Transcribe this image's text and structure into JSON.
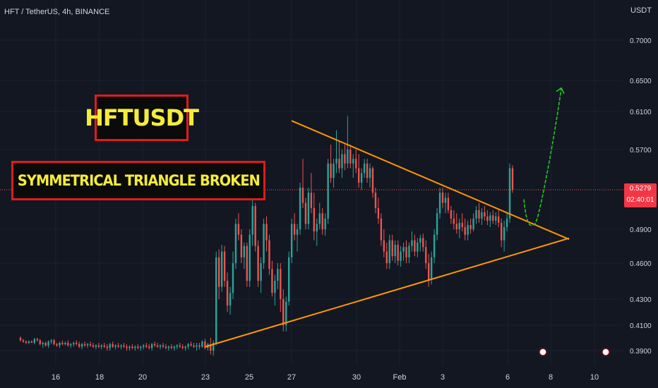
{
  "header": {
    "symbol": "HFT / TetherUS, 4h, BINANCE",
    "currency": "USDT"
  },
  "annotations": {
    "ticker": "HFTUSDT",
    "pattern": "SYMMETRICAL TRIANGLE BROKEN"
  },
  "price_tag": {
    "price": "0.5279",
    "countdown": "02:40:01"
  },
  "events": [
    {
      "icon": "us-flag-icon"
    },
    {
      "icon": "us-flag-icon"
    }
  ],
  "colors": {
    "background": "#131722",
    "up": "#26a69a",
    "down": "#ef5350",
    "trendline": "#ff9800",
    "projection": "#22c722",
    "box_border": "#e01b1b",
    "box_text": "#f4ec3a"
  },
  "chart_data": {
    "type": "candlestick",
    "title": "HFT / TetherUS, 4h, BINANCE",
    "y_axis": {
      "scale": "log",
      "unit": "USDT",
      "ticks": [
        "0.7000",
        "0.6500",
        "0.6100",
        "0.5700",
        "0.5279",
        "0.4900",
        "0.4600",
        "0.4300",
        "0.4100",
        "0.3900"
      ]
    },
    "x_axis": {
      "ticks": [
        "16",
        "18",
        "20",
        "23",
        "25",
        "27",
        "30",
        "Feb",
        "3",
        "6",
        "8",
        "10"
      ]
    },
    "last_price": 0.5279,
    "trendlines": [
      {
        "name": "upper",
        "from": {
          "date": "Jan 27",
          "price": 0.6
        },
        "to": {
          "date": "Feb 8",
          "price": 0.488
        }
      },
      {
        "name": "lower",
        "from": {
          "date": "Jan 23",
          "price": 0.393
        },
        "to": {
          "date": "Feb 8",
          "price": 0.477
        }
      }
    ],
    "projection": [
      {
        "date": "Feb 6",
        "price": 0.515
      },
      {
        "date": "Feb 7",
        "price": 0.498
      },
      {
        "date": "Feb 8",
        "price": 0.64
      }
    ],
    "candles": [
      [
        0.4,
        0.401,
        0.397,
        0.398
      ],
      [
        0.398,
        0.399,
        0.396,
        0.397
      ],
      [
        0.397,
        0.398,
        0.395,
        0.396
      ],
      [
        0.396,
        0.398,
        0.395,
        0.397
      ],
      [
        0.397,
        0.398,
        0.396,
        0.396
      ],
      [
        0.396,
        0.4,
        0.395,
        0.399
      ],
      [
        0.399,
        0.4,
        0.397,
        0.398
      ],
      [
        0.398,
        0.399,
        0.394,
        0.395
      ],
      [
        0.395,
        0.397,
        0.392,
        0.396
      ],
      [
        0.396,
        0.397,
        0.393,
        0.394
      ],
      [
        0.394,
        0.398,
        0.392,
        0.397
      ],
      [
        0.397,
        0.399,
        0.395,
        0.398
      ],
      [
        0.398,
        0.399,
        0.394,
        0.395
      ],
      [
        0.395,
        0.396,
        0.393,
        0.394
      ],
      [
        0.394,
        0.397,
        0.392,
        0.396
      ],
      [
        0.396,
        0.398,
        0.394,
        0.395
      ],
      [
        0.395,
        0.397,
        0.394,
        0.396
      ],
      [
        0.396,
        0.398,
        0.393,
        0.394
      ],
      [
        0.394,
        0.396,
        0.392,
        0.395
      ],
      [
        0.395,
        0.397,
        0.393,
        0.396
      ],
      [
        0.396,
        0.398,
        0.394,
        0.395
      ],
      [
        0.395,
        0.397,
        0.392,
        0.393
      ],
      [
        0.393,
        0.396,
        0.391,
        0.395
      ],
      [
        0.395,
        0.397,
        0.393,
        0.394
      ],
      [
        0.394,
        0.396,
        0.392,
        0.395
      ],
      [
        0.395,
        0.397,
        0.393,
        0.394
      ],
      [
        0.394,
        0.396,
        0.392,
        0.393
      ],
      [
        0.393,
        0.395,
        0.391,
        0.394
      ],
      [
        0.394,
        0.396,
        0.392,
        0.393
      ],
      [
        0.393,
        0.395,
        0.391,
        0.394
      ],
      [
        0.394,
        0.396,
        0.392,
        0.393
      ],
      [
        0.393,
        0.395,
        0.39,
        0.392
      ],
      [
        0.392,
        0.396,
        0.39,
        0.395
      ],
      [
        0.395,
        0.397,
        0.392,
        0.393
      ],
      [
        0.393,
        0.395,
        0.391,
        0.394
      ],
      [
        0.394,
        0.396,
        0.392,
        0.393
      ],
      [
        0.393,
        0.395,
        0.391,
        0.394
      ],
      [
        0.394,
        0.396,
        0.392,
        0.393
      ],
      [
        0.393,
        0.395,
        0.39,
        0.392
      ],
      [
        0.392,
        0.394,
        0.39,
        0.393
      ],
      [
        0.393,
        0.395,
        0.391,
        0.392
      ],
      [
        0.392,
        0.394,
        0.39,
        0.393
      ],
      [
        0.393,
        0.395,
        0.391,
        0.392
      ],
      [
        0.392,
        0.394,
        0.39,
        0.393
      ],
      [
        0.393,
        0.395,
        0.391,
        0.394
      ],
      [
        0.394,
        0.396,
        0.392,
        0.393
      ],
      [
        0.393,
        0.395,
        0.391,
        0.392
      ],
      [
        0.392,
        0.396,
        0.39,
        0.395
      ],
      [
        0.395,
        0.397,
        0.393,
        0.394
      ],
      [
        0.394,
        0.396,
        0.392,
        0.393
      ],
      [
        0.393,
        0.395,
        0.391,
        0.394
      ],
      [
        0.394,
        0.396,
        0.392,
        0.393
      ],
      [
        0.393,
        0.395,
        0.391,
        0.392
      ],
      [
        0.392,
        0.394,
        0.39,
        0.393
      ],
      [
        0.393,
        0.395,
        0.391,
        0.392
      ],
      [
        0.392,
        0.394,
        0.39,
        0.393
      ],
      [
        0.393,
        0.395,
        0.391,
        0.394
      ],
      [
        0.394,
        0.396,
        0.392,
        0.393
      ],
      [
        0.393,
        0.395,
        0.391,
        0.392
      ],
      [
        0.392,
        0.394,
        0.39,
        0.393
      ],
      [
        0.393,
        0.396,
        0.391,
        0.395
      ],
      [
        0.395,
        0.397,
        0.393,
        0.394
      ],
      [
        0.394,
        0.396,
        0.392,
        0.393
      ],
      [
        0.393,
        0.396,
        0.39,
        0.394
      ],
      [
        0.394,
        0.396,
        0.391,
        0.393
      ],
      [
        0.393,
        0.398,
        0.392,
        0.397
      ],
      [
        0.397,
        0.399,
        0.391,
        0.392
      ],
      [
        0.392,
        0.396,
        0.39,
        0.395
      ],
      [
        0.395,
        0.4,
        0.387,
        0.39
      ],
      [
        0.39,
        0.398,
        0.386,
        0.396
      ],
      [
        0.396,
        0.47,
        0.394,
        0.465
      ],
      [
        0.465,
        0.472,
        0.43,
        0.44
      ],
      [
        0.44,
        0.476,
        0.436,
        0.47
      ],
      [
        0.47,
        0.475,
        0.44,
        0.445
      ],
      [
        0.445,
        0.452,
        0.42,
        0.425
      ],
      [
        0.425,
        0.44,
        0.418,
        0.435
      ],
      [
        0.435,
        0.47,
        0.43,
        0.46
      ],
      [
        0.46,
        0.5,
        0.455,
        0.495
      ],
      [
        0.495,
        0.505,
        0.48,
        0.485
      ],
      [
        0.485,
        0.49,
        0.46,
        0.465
      ],
      [
        0.465,
        0.478,
        0.455,
        0.475
      ],
      [
        0.475,
        0.478,
        0.44,
        0.445
      ],
      [
        0.445,
        0.49,
        0.44,
        0.485
      ],
      [
        0.485,
        0.52,
        0.475,
        0.512
      ],
      [
        0.512,
        0.515,
        0.47,
        0.475
      ],
      [
        0.475,
        0.48,
        0.44,
        0.445
      ],
      [
        0.445,
        0.465,
        0.435,
        0.46
      ],
      [
        0.46,
        0.5,
        0.455,
        0.495
      ],
      [
        0.495,
        0.502,
        0.47,
        0.48
      ],
      [
        0.48,
        0.485,
        0.45,
        0.455
      ],
      [
        0.455,
        0.462,
        0.432,
        0.435
      ],
      [
        0.435,
        0.45,
        0.425,
        0.445
      ],
      [
        0.445,
        0.46,
        0.438,
        0.455
      ],
      [
        0.455,
        0.46,
        0.42,
        0.43
      ],
      [
        0.43,
        0.438,
        0.405,
        0.41
      ],
      [
        0.41,
        0.432,
        0.405,
        0.428
      ],
      [
        0.428,
        0.47,
        0.425,
        0.465
      ],
      [
        0.465,
        0.5,
        0.46,
        0.495
      ],
      [
        0.495,
        0.505,
        0.48,
        0.485
      ],
      [
        0.485,
        0.495,
        0.47,
        0.49
      ],
      [
        0.49,
        0.535,
        0.485,
        0.53
      ],
      [
        0.53,
        0.56,
        0.51,
        0.515
      ],
      [
        0.515,
        0.52,
        0.49,
        0.495
      ],
      [
        0.495,
        0.53,
        0.49,
        0.525
      ],
      [
        0.525,
        0.545,
        0.505,
        0.51
      ],
      [
        0.51,
        0.525,
        0.48,
        0.488
      ],
      [
        0.488,
        0.5,
        0.475,
        0.495
      ],
      [
        0.495,
        0.515,
        0.49,
        0.505
      ],
      [
        0.505,
        0.51,
        0.485,
        0.49
      ],
      [
        0.49,
        0.505,
        0.484,
        0.5
      ],
      [
        0.5,
        0.56,
        0.495,
        0.555
      ],
      [
        0.555,
        0.575,
        0.535,
        0.54
      ],
      [
        0.54,
        0.56,
        0.53,
        0.555
      ],
      [
        0.555,
        0.59,
        0.545,
        0.56
      ],
      [
        0.56,
        0.578,
        0.545,
        0.55
      ],
      [
        0.55,
        0.57,
        0.54,
        0.565
      ],
      [
        0.565,
        0.575,
        0.548,
        0.555
      ],
      [
        0.555,
        0.605,
        0.55,
        0.57
      ],
      [
        0.57,
        0.575,
        0.55,
        0.555
      ],
      [
        0.555,
        0.565,
        0.54,
        0.56
      ],
      [
        0.56,
        0.57,
        0.545,
        0.55
      ],
      [
        0.55,
        0.565,
        0.53,
        0.535
      ],
      [
        0.535,
        0.55,
        0.528,
        0.545
      ],
      [
        0.545,
        0.56,
        0.54,
        0.555
      ],
      [
        0.555,
        0.56,
        0.535,
        0.54
      ],
      [
        0.54,
        0.555,
        0.53,
        0.55
      ],
      [
        0.55,
        0.552,
        0.52,
        0.525
      ],
      [
        0.525,
        0.53,
        0.505,
        0.51
      ],
      [
        0.51,
        0.52,
        0.495,
        0.5
      ],
      [
        0.5,
        0.505,
        0.475,
        0.48
      ],
      [
        0.48,
        0.49,
        0.465,
        0.47
      ],
      [
        0.47,
        0.478,
        0.455,
        0.46
      ],
      [
        0.46,
        0.485,
        0.455,
        0.48
      ],
      [
        0.48,
        0.485,
        0.462,
        0.466
      ],
      [
        0.466,
        0.48,
        0.46,
        0.476
      ],
      [
        0.476,
        0.48,
        0.458,
        0.462
      ],
      [
        0.462,
        0.475,
        0.457,
        0.47
      ],
      [
        0.47,
        0.478,
        0.462,
        0.474
      ],
      [
        0.474,
        0.48,
        0.46,
        0.465
      ],
      [
        0.465,
        0.478,
        0.46,
        0.475
      ],
      [
        0.475,
        0.488,
        0.47,
        0.48
      ],
      [
        0.48,
        0.485,
        0.466,
        0.47
      ],
      [
        0.47,
        0.482,
        0.465,
        0.478
      ],
      [
        0.478,
        0.485,
        0.47,
        0.482
      ],
      [
        0.482,
        0.486,
        0.47,
        0.474
      ],
      [
        0.474,
        0.48,
        0.455,
        0.46
      ],
      [
        0.46,
        0.468,
        0.44,
        0.446
      ],
      [
        0.446,
        0.47,
        0.442,
        0.465
      ],
      [
        0.465,
        0.49,
        0.46,
        0.485
      ],
      [
        0.485,
        0.51,
        0.48,
        0.505
      ],
      [
        0.505,
        0.53,
        0.5,
        0.525
      ],
      [
        0.525,
        0.53,
        0.51,
        0.515
      ],
      [
        0.515,
        0.525,
        0.505,
        0.52
      ],
      [
        0.52,
        0.525,
        0.505,
        0.508
      ],
      [
        0.508,
        0.512,
        0.495,
        0.5
      ],
      [
        0.5,
        0.508,
        0.49,
        0.495
      ],
      [
        0.495,
        0.505,
        0.486,
        0.49
      ],
      [
        0.49,
        0.5,
        0.482,
        0.496
      ],
      [
        0.496,
        0.505,
        0.488,
        0.492
      ],
      [
        0.492,
        0.5,
        0.48,
        0.485
      ],
      [
        0.485,
        0.498,
        0.48,
        0.494
      ],
      [
        0.494,
        0.5,
        0.486,
        0.49
      ],
      [
        0.49,
        0.505,
        0.488,
        0.5
      ],
      [
        0.5,
        0.512,
        0.495,
        0.508
      ],
      [
        0.508,
        0.515,
        0.496,
        0.5
      ],
      [
        0.5,
        0.51,
        0.494,
        0.506
      ],
      [
        0.506,
        0.512,
        0.498,
        0.502
      ],
      [
        0.502,
        0.508,
        0.494,
        0.498
      ],
      [
        0.498,
        0.506,
        0.492,
        0.503
      ],
      [
        0.503,
        0.508,
        0.495,
        0.498
      ],
      [
        0.498,
        0.506,
        0.494,
        0.502
      ],
      [
        0.502,
        0.508,
        0.492,
        0.496
      ],
      [
        0.496,
        0.5,
        0.474,
        0.48
      ],
      [
        0.48,
        0.498,
        0.47,
        0.492
      ],
      [
        0.492,
        0.505,
        0.488,
        0.5
      ],
      [
        0.5,
        0.555,
        0.496,
        0.55
      ],
      [
        0.55,
        0.553,
        0.525,
        0.528
      ]
    ]
  }
}
